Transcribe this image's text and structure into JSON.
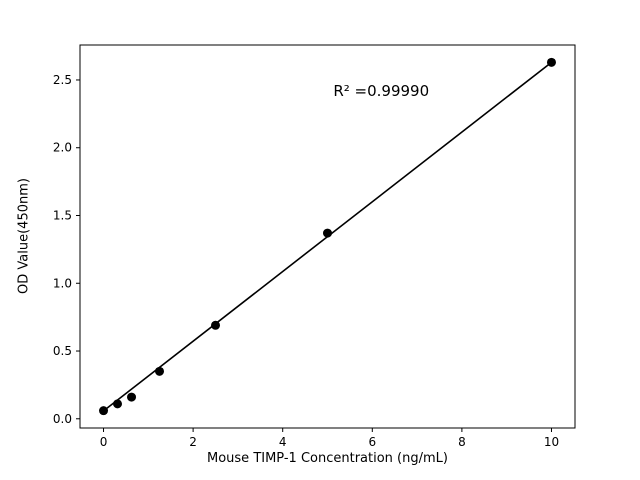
{
  "figure": {
    "background": "#ffffff"
  },
  "chart_data": {
    "type": "scatter",
    "title": "",
    "xlabel": "Mouse TIMP-1 Concentration (ng/mL)",
    "ylabel": "OD Value(450nm)",
    "x": [
      0,
      0.3125,
      0.625,
      1.25,
      2.5,
      5,
      10
    ],
    "y": [
      0.06,
      0.11,
      0.16,
      0.35,
      0.69,
      1.37,
      2.63
    ],
    "line": {
      "x": [
        0,
        10
      ],
      "y": [
        0.058,
        2.63
      ]
    },
    "annotation": {
      "text": "R² =0.99990",
      "x": 6.2,
      "y": 2.38
    },
    "xlim": [
      -0.525,
      10.525
    ],
    "ylim": [
      -0.068,
      2.758
    ],
    "xticks": [
      0,
      2,
      4,
      6,
      8,
      10
    ],
    "yticks": [
      0.0,
      0.5,
      1.0,
      1.5,
      2.0,
      2.5
    ],
    "grid": false,
    "legend": "none",
    "marker_color": "#000000",
    "line_color": "#000000",
    "axis_color": "#000000"
  }
}
